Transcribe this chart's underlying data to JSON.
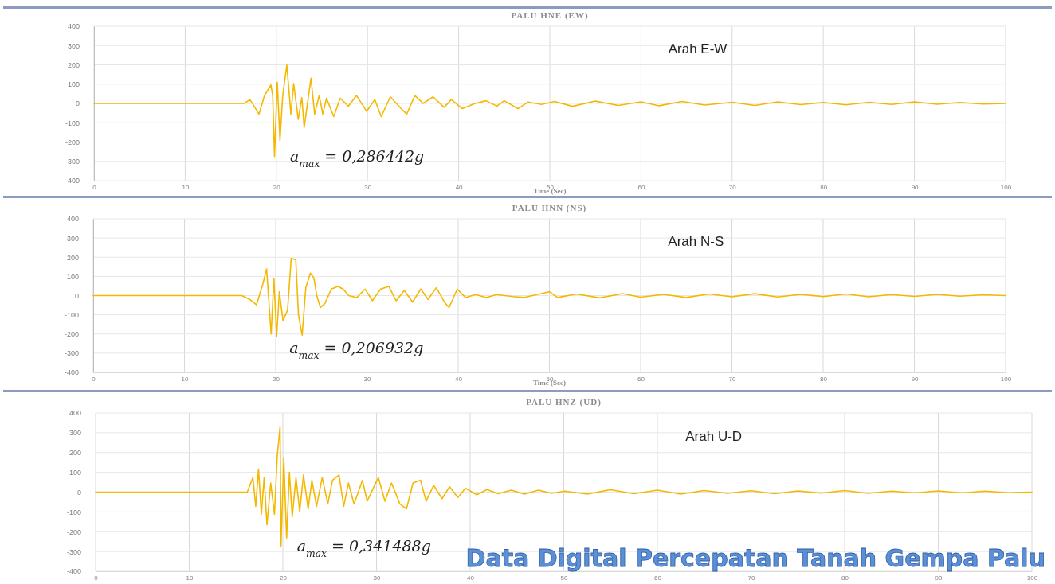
{
  "chart_data": [
    {
      "type": "line",
      "title": "PALU HNE (EW)",
      "xlabel": "Time (Sec)",
      "xlim": [
        0,
        100
      ],
      "xticks": [
        0,
        10,
        20,
        30,
        40,
        50,
        60,
        70,
        80,
        90,
        100
      ],
      "ylim": [
        -400,
        400
      ],
      "yticks": [
        -400,
        -300,
        -200,
        -100,
        0,
        100,
        200,
        300,
        400
      ],
      "grid": true,
      "marker": "none",
      "line_style": "solid",
      "annotations": [
        "Arah E-W",
        "a$_{max}$ = 0,286442g"
      ],
      "series": [
        {
          "color": "#f5b800",
          "x": [
            0,
            16,
            16.5,
            17.1,
            18.1,
            18.7,
            19.4,
            19.6,
            19.8,
            20.1,
            20.4,
            20.7,
            21.15,
            21.6,
            21.9,
            22.4,
            22.8,
            23.05,
            23.8,
            24.2,
            24.7,
            25.1,
            25.5,
            26.3,
            27,
            27.9,
            28.8,
            29.9,
            30.8,
            31.5,
            32.5,
            33.7,
            34.3,
            35.2,
            36.1,
            37.2,
            38.4,
            39.2,
            40.4,
            41.8,
            43,
            44.2,
            45,
            46.5,
            47.6,
            49.1,
            50.5,
            52.5,
            55,
            57.5,
            60,
            62,
            64.5,
            67,
            70,
            72.5,
            75,
            77.5,
            80,
            82.5,
            85,
            87.5,
            90,
            92.5,
            95,
            97.5,
            100
          ],
          "values": [
            0,
            0,
            0,
            20,
            -55,
            41,
            96,
            40,
            -275,
            110,
            -193,
            41,
            199,
            -55,
            103,
            -82,
            30,
            -124,
            131,
            -55,
            41,
            -55,
            27,
            -68,
            27,
            -14,
            41,
            -41,
            20,
            -68,
            34,
            -27,
            -55,
            41,
            0,
            34,
            -20,
            20,
            -27,
            0,
            14,
            -14,
            14,
            -27,
            7,
            -5,
            10,
            -15,
            12,
            -10,
            8,
            -12,
            10,
            -8,
            6,
            -10,
            8,
            -6,
            5,
            -7,
            6,
            -5,
            8,
            -4,
            5,
            -3,
            0
          ]
        }
      ]
    },
    {
      "type": "line",
      "title": "PALU HNN (NS)",
      "xlabel": "Time (Sec)",
      "xlim": [
        0,
        100
      ],
      "xticks": [
        0,
        10,
        20,
        30,
        40,
        50,
        60,
        70,
        80,
        90,
        100
      ],
      "ylim": [
        -400,
        400
      ],
      "yticks": [
        -400,
        -300,
        -200,
        -100,
        0,
        100,
        200,
        300,
        400
      ],
      "grid": true,
      "marker": "none",
      "line_style": "solid",
      "annotations": [
        "Arah N-S",
        "a$_{max}$ = 0,206932g"
      ],
      "series": [
        {
          "color": "#f5b800",
          "x": [
            0,
            16,
            16.3,
            17.2,
            17.9,
            18.6,
            19,
            19.5,
            19.8,
            20.1,
            20.4,
            20.8,
            21.3,
            21.7,
            22.2,
            22.5,
            22.9,
            23.3,
            23.8,
            24.2,
            24.5,
            24.9,
            25.4,
            26.1,
            26.8,
            27.4,
            28,
            28.9,
            29.8,
            30.6,
            31.5,
            32.4,
            33.2,
            34.1,
            35,
            35.9,
            36.7,
            37.6,
            38.5,
            39,
            39.9,
            40.8,
            41.9,
            43.1,
            44.2,
            46,
            47.2,
            48.6,
            50,
            50.9,
            53,
            55.5,
            58,
            60,
            62.5,
            65,
            67.5,
            70,
            72.5,
            75,
            77.5,
            80,
            82.5,
            85,
            87.5,
            90,
            92.5,
            95,
            97.5,
            100
          ],
          "values": [
            0,
            0,
            0,
            -21,
            -48,
            62,
            139,
            -200,
            90,
            -214,
            20,
            -130,
            -76,
            194,
            187,
            -103,
            -206,
            41,
            117,
            90,
            0,
            -62,
            -41,
            34,
            48,
            34,
            0,
            -10,
            34,
            -27,
            34,
            48,
            -27,
            27,
            -34,
            34,
            -20,
            41,
            -34,
            -62,
            34,
            -10,
            5,
            -10,
            5,
            -5,
            -10,
            5,
            20,
            -10,
            8,
            -12,
            10,
            -8,
            6,
            -10,
            8,
            -6,
            10,
            -7,
            6,
            -5,
            8,
            -6,
            5,
            -4,
            6,
            -3,
            4,
            0
          ]
        }
      ]
    },
    {
      "type": "line",
      "title": "PALU HNZ (UD)",
      "xlim": [
        0,
        100
      ],
      "xticks": [
        0,
        10,
        20,
        30,
        40,
        50,
        60,
        70,
        80,
        90,
        100
      ],
      "ylim": [
        -400,
        400
      ],
      "yticks": [
        -400,
        -300,
        -200,
        -100,
        0,
        100,
        200,
        300,
        400
      ],
      "grid": true,
      "marker": "none",
      "line_style": "solid",
      "annotations": [
        "Arah U-D",
        "a$_{max}$ = 0,341488g",
        "Data Digital Percepatan Tanah Gempa Palu"
      ],
      "series": [
        {
          "color": "#f5b800",
          "x": [
            0,
            16,
            16.2,
            16.8,
            17.1,
            17.4,
            17.7,
            18,
            18.3,
            18.7,
            19.1,
            19.4,
            19.7,
            19.8,
            20.1,
            20.4,
            20.7,
            21,
            21.4,
            21.8,
            22.2,
            22.7,
            23.1,
            23.6,
            24.2,
            24.8,
            25.3,
            26,
            26.5,
            27,
            27.6,
            28.5,
            29,
            30.2,
            30.9,
            31.6,
            32.5,
            33.2,
            33.9,
            34.7,
            35.3,
            36.1,
            37,
            37.8,
            38.7,
            39.5,
            40.7,
            41.8,
            43,
            44.4,
            45.8,
            47.3,
            48.7,
            50.1,
            52.5,
            55,
            57.5,
            60,
            62.5,
            65,
            67.5,
            70,
            72.5,
            75,
            77.5,
            80,
            82.5,
            85,
            87.5,
            90,
            92.5,
            95,
            97.5,
            100
          ],
          "values": [
            0,
            0,
            0,
            74,
            -72,
            116,
            -112,
            74,
            -165,
            46,
            -112,
            184,
            329,
            -272,
            171,
            -232,
            100,
            -125,
            74,
            -98,
            87,
            -85,
            60,
            -72,
            74,
            -60,
            60,
            87,
            -72,
            46,
            -60,
            60,
            -46,
            74,
            -46,
            46,
            -60,
            -85,
            46,
            60,
            -46,
            34,
            -33,
            27,
            -27,
            20,
            -13,
            13,
            -8,
            10,
            -10,
            10,
            -6,
            5,
            -10,
            12,
            -8,
            10,
            -10,
            8,
            -6,
            7,
            -8,
            6,
            -5,
            8,
            -6,
            5,
            -4,
            6,
            -4,
            5,
            -3,
            0
          ]
        }
      ]
    }
  ]
}
